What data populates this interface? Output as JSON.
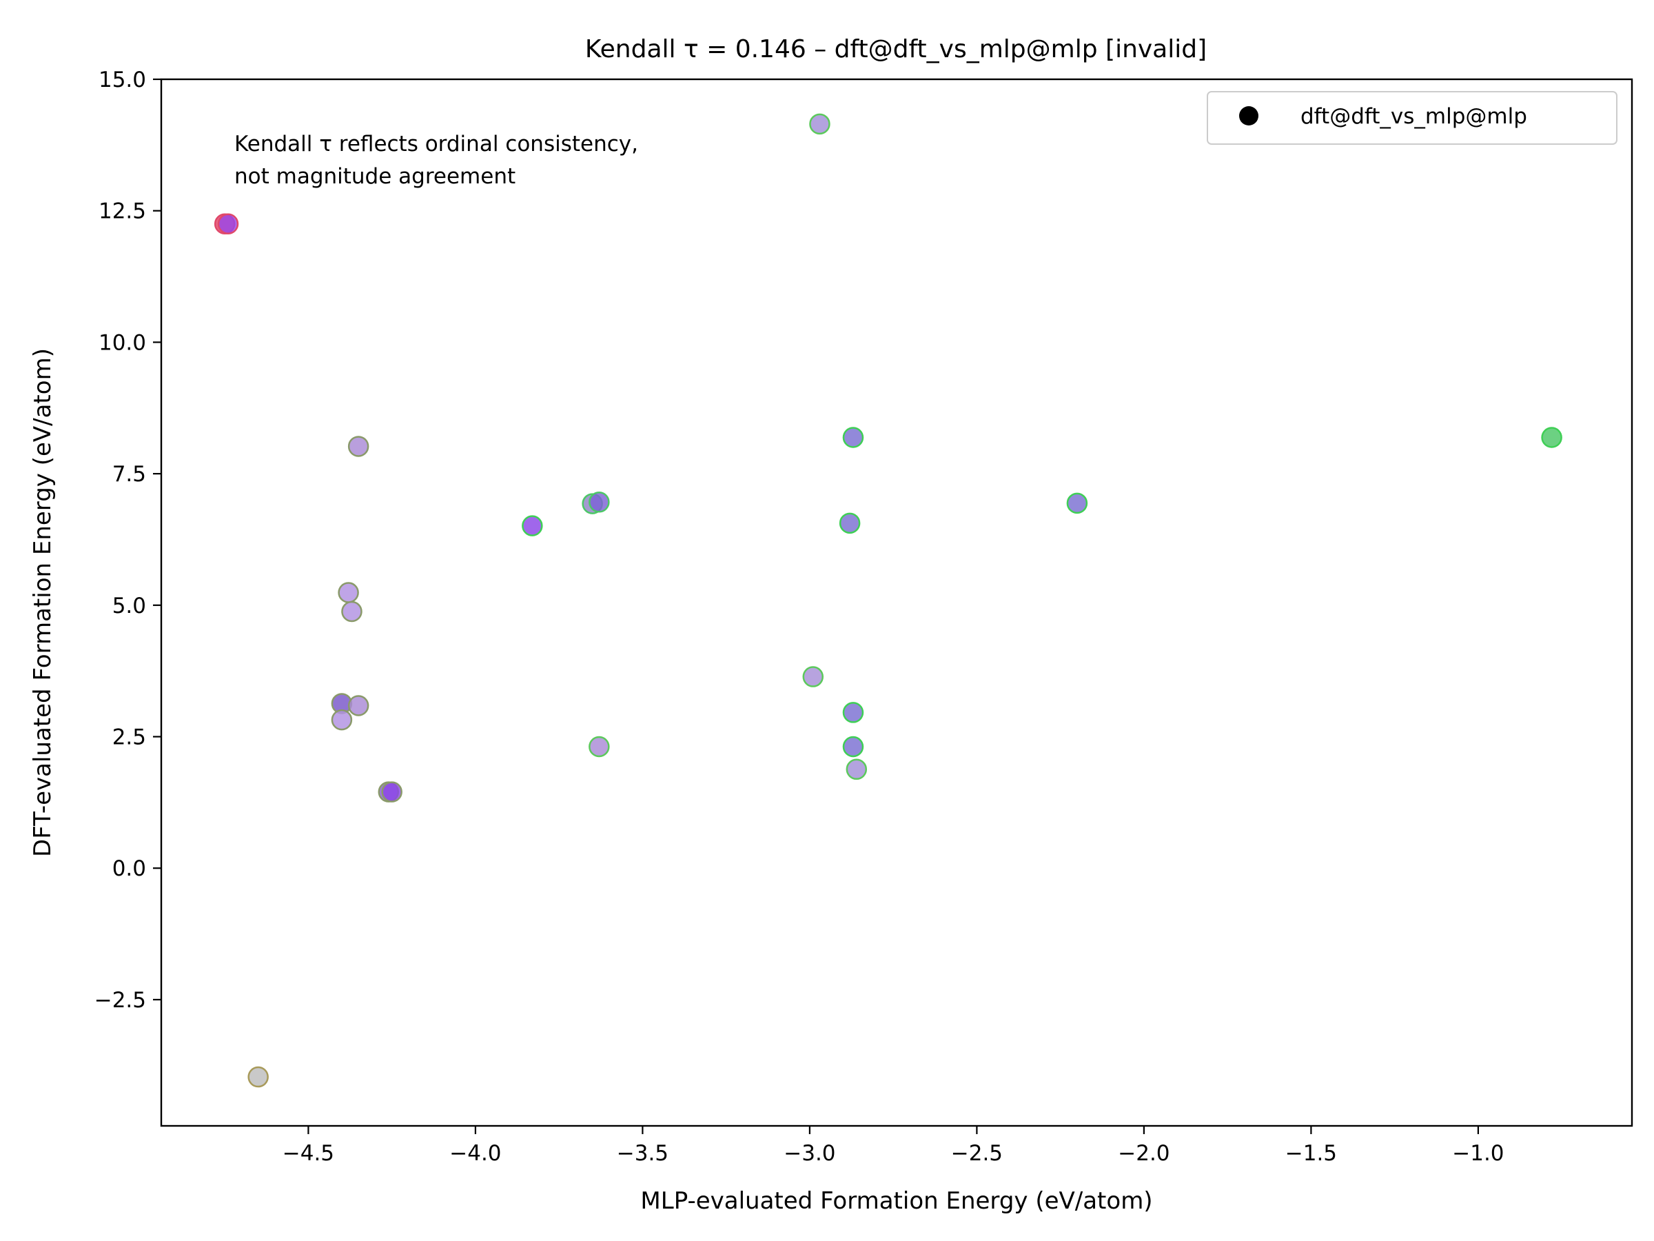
{
  "chart_data": {
    "type": "scatter",
    "title": "Kendall τ = 0.146 – dft@dft_vs_mlp@mlp [invalid]",
    "xlabel": "MLP-evaluated Formation Energy (eV/atom)",
    "ylabel": "DFT-evaluated Formation Energy (eV/atom)",
    "xlim": [
      -4.94,
      -0.54
    ],
    "ylim": [
      -4.9,
      15.0
    ],
    "xticks": [
      -4.5,
      -4.0,
      -3.5,
      -3.0,
      -2.5,
      -2.0,
      -1.5,
      -1.0
    ],
    "xtick_labels": [
      "−4.5",
      "−4.0",
      "−3.5",
      "−3.0",
      "−2.5",
      "−2.0",
      "−1.5",
      "−1.0"
    ],
    "yticks": [
      -2.5,
      0.0,
      2.5,
      5.0,
      7.5,
      10.0,
      12.5,
      15.0
    ],
    "ytick_labels": [
      "−2.5",
      "0.0",
      "2.5",
      "5.0",
      "7.5",
      "10.0",
      "12.5",
      "15.0"
    ],
    "grid": false,
    "legend": {
      "placement": "top-right",
      "entries": [
        "dft@dft_vs_mlp@mlp"
      ],
      "marker_color": "#000000"
    },
    "annotation": [
      "Kendall τ reflects ordinal consistency,",
      "not magnitude agreement"
    ],
    "series": [
      {
        "name": "dft@dft_vs_mlp@mlp",
        "points": [
          {
            "x": -2.97,
            "y": 14.15,
            "fill": "#a28fd8",
            "edge": "#5cc95c"
          },
          {
            "x": -4.75,
            "y": 12.25,
            "fill": "#e0486a",
            "edge": "#e0486a"
          },
          {
            "x": -4.74,
            "y": 12.25,
            "fill": "#9a46e8",
            "edge": "#e0486a"
          },
          {
            "x": -4.35,
            "y": 8.02,
            "fill": "#a98ad6",
            "edge": "#8a9a6a"
          },
          {
            "x": -2.87,
            "y": 8.19,
            "fill": "#7a6fd2",
            "edge": "#3fcf55"
          },
          {
            "x": -0.78,
            "y": 8.19,
            "fill": "#4cc766",
            "edge": "#3fcf55"
          },
          {
            "x": -3.65,
            "y": 6.93,
            "fill": "#8f84c6",
            "edge": "#4cc766"
          },
          {
            "x": -3.63,
            "y": 6.96,
            "fill": "#7d62d6",
            "edge": "#4cc766"
          },
          {
            "x": -2.2,
            "y": 6.94,
            "fill": "#7a6fd2",
            "edge": "#3fcf55"
          },
          {
            "x": -3.83,
            "y": 6.51,
            "fill": "#8b46e6",
            "edge": "#3fcf55"
          },
          {
            "x": -2.88,
            "y": 6.56,
            "fill": "#7a6fd2",
            "edge": "#3fcf55"
          },
          {
            "x": -4.38,
            "y": 5.24,
            "fill": "#b191e2",
            "edge": "#8a9a6a"
          },
          {
            "x": -4.37,
            "y": 4.88,
            "fill": "#b191e2",
            "edge": "#8a9a6a"
          },
          {
            "x": -2.99,
            "y": 3.64,
            "fill": "#a78fd8",
            "edge": "#5cc95c"
          },
          {
            "x": -4.4,
            "y": 3.13,
            "fill": "#7856c9",
            "edge": "#8a9a6a"
          },
          {
            "x": -4.35,
            "y": 3.09,
            "fill": "#a98ad6",
            "edge": "#8a9a6a"
          },
          {
            "x": -4.4,
            "y": 2.82,
            "fill": "#b191e2",
            "edge": "#8a9a6a"
          },
          {
            "x": -2.87,
            "y": 2.96,
            "fill": "#7a6fd2",
            "edge": "#3fcf55"
          },
          {
            "x": -3.63,
            "y": 2.31,
            "fill": "#a98ad6",
            "edge": "#5cc95c"
          },
          {
            "x": -2.87,
            "y": 2.31,
            "fill": "#7a6fd2",
            "edge": "#3fcf55"
          },
          {
            "x": -2.86,
            "y": 1.88,
            "fill": "#a28fd8",
            "edge": "#5cc95c"
          },
          {
            "x": -4.26,
            "y": 1.45,
            "fill": "#8a5ad8",
            "edge": "#8a9a6a"
          },
          {
            "x": -4.25,
            "y": 1.45,
            "fill": "#8b46e6",
            "edge": "#8a9a6a"
          },
          {
            "x": -4.65,
            "y": -3.97,
            "fill": "#bdbdbd",
            "edge": "#a89a5a"
          }
        ]
      }
    ]
  }
}
